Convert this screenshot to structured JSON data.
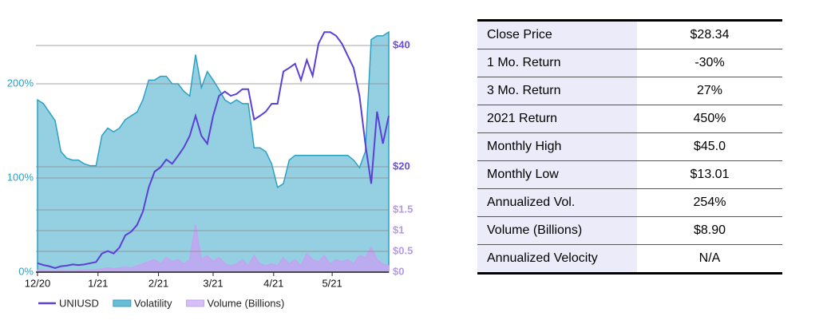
{
  "chart_data": {
    "type": "line",
    "x": [
      0,
      3,
      6,
      9,
      12,
      15,
      18,
      21,
      24,
      27,
      30,
      33,
      36,
      39,
      42,
      45,
      48,
      51,
      54,
      57,
      60,
      63,
      66,
      69,
      72,
      75,
      78,
      81,
      84,
      87,
      90,
      93,
      96,
      99,
      102,
      105,
      108,
      111,
      114,
      117,
      120,
      123,
      126,
      129,
      132,
      135,
      138,
      141,
      144,
      147,
      150,
      153,
      156,
      159,
      162,
      165,
      168,
      171,
      174,
      177,
      180
    ],
    "xlim": [
      0,
      180
    ],
    "xticks": [
      {
        "value": 0,
        "label": "12/20"
      },
      {
        "value": 31,
        "label": "1/21"
      },
      {
        "value": 62,
        "label": "2/21"
      },
      {
        "value": 90,
        "label": "3/21"
      },
      {
        "value": 121,
        "label": "4/21"
      },
      {
        "value": 151,
        "label": "5/21"
      }
    ],
    "ylim": [
      0,
      263.6
    ],
    "yticks": [
      {
        "value": 0,
        "label": "0%"
      },
      {
        "value": 100,
        "label": "100%"
      },
      {
        "value": 200,
        "label": "200%"
      }
    ],
    "y2lim": [
      2.63,
      43.55
    ],
    "y2ticks": [
      {
        "value": 20,
        "label": "$20"
      },
      {
        "value": 40,
        "label": "$40"
      }
    ],
    "y3lim": [
      0,
      5.98
    ],
    "y3ticks": [
      {
        "value": 0,
        "label": "$0"
      },
      {
        "value": 0.5,
        "label": "$0.5"
      },
      {
        "value": 1,
        "label": "$1"
      },
      {
        "value": 1.5,
        "label": "$1.5"
      }
    ],
    "grid": true,
    "series": [
      {
        "name": "UNIUSD",
        "color": "#5b3fd6",
        "axis": "y2",
        "values": [
          4.1,
          3.8,
          3.6,
          3.3,
          3.6,
          3.7,
          3.9,
          3.8,
          3.9,
          4.1,
          4.3,
          5.7,
          6.1,
          5.7,
          6.7,
          8.7,
          9.3,
          10.4,
          12.6,
          16.6,
          19.2,
          19.9,
          21.2,
          20.5,
          21.8,
          23.2,
          25.1,
          28.4,
          25.1,
          23.8,
          28.4,
          31.7,
          32.4,
          31.7,
          32.0,
          32.8,
          32.8,
          27.8,
          28.4,
          29.1,
          30.4,
          30.4,
          35.7,
          36.3,
          37.0,
          34.3,
          37.6,
          35.0,
          40.3,
          42.2,
          42.2,
          41.6,
          40.3,
          38.3,
          36.3,
          31.7,
          23.8,
          17.2,
          29.1,
          23.8,
          28.4
        ]
      },
      {
        "name": "Volatility",
        "color": "#2aa1c4",
        "axis": "y",
        "values": [
          183,
          179,
          170,
          161,
          128,
          121,
          119,
          119,
          115,
          113,
          113,
          145,
          153,
          149,
          153,
          162,
          166,
          170,
          183,
          204,
          204,
          208,
          208,
          200,
          200,
          192,
          187,
          231,
          196,
          213,
          204,
          194,
          183,
          179,
          183,
          179,
          179,
          132,
          132,
          128,
          115,
          90,
          94,
          119,
          124,
          124,
          124,
          124,
          124,
          124,
          124,
          124,
          124,
          124,
          119,
          111,
          128,
          247,
          251,
          251,
          255
        ]
      },
      {
        "name": "Volume (Billions)",
        "color": "#c4a3f2",
        "axis": "y3",
        "values": [
          0.05,
          0.04,
          0.04,
          0.03,
          0.05,
          0.04,
          0.03,
          0.04,
          0.05,
          0.05,
          0.06,
          0.08,
          0.1,
          0.08,
          0.1,
          0.12,
          0.1,
          0.15,
          0.2,
          0.25,
          0.3,
          0.2,
          0.35,
          0.25,
          0.3,
          0.2,
          0.3,
          1.15,
          0.3,
          0.4,
          0.25,
          0.35,
          0.2,
          0.15,
          0.2,
          0.3,
          0.15,
          0.4,
          0.2,
          0.15,
          0.2,
          0.15,
          0.35,
          0.2,
          0.3,
          0.15,
          0.45,
          0.3,
          0.25,
          0.4,
          0.2,
          0.3,
          0.25,
          0.3,
          0.2,
          0.4,
          0.35,
          0.6,
          0.3,
          0.2,
          0.15
        ]
      }
    ]
  },
  "table": {
    "rows": [
      [
        "Close Price",
        "$28.34"
      ],
      [
        "1 Mo. Return",
        "-30%"
      ],
      [
        "3 Mo. Return",
        "27%"
      ],
      [
        "2021 Return",
        "450%"
      ],
      [
        "Monthly High",
        "$45.0"
      ],
      [
        "Monthly Low",
        "$13.01"
      ],
      [
        "Annualized Vol.",
        "254%"
      ],
      [
        "Volume (Billions)",
        "$8.90"
      ],
      [
        "Annualized Velocity",
        "N/A"
      ]
    ]
  }
}
